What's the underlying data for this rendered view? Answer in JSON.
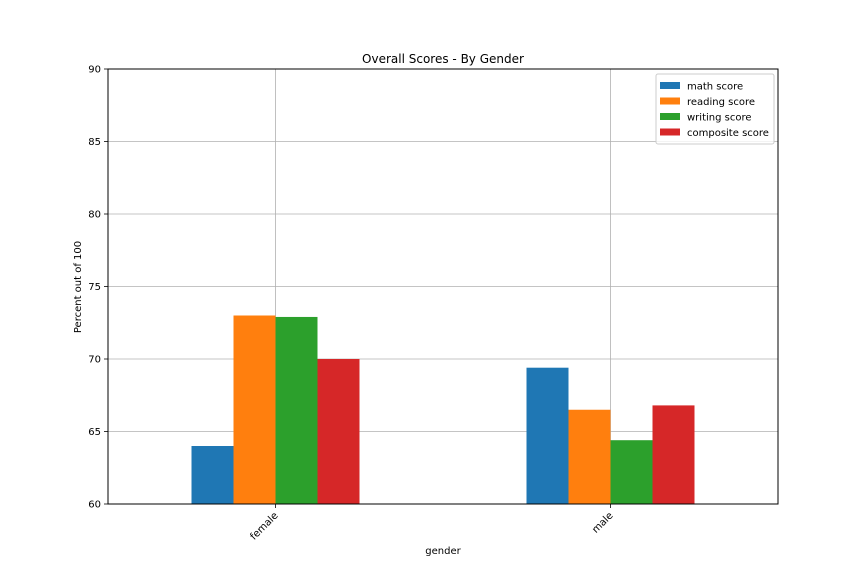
{
  "chart_data": {
    "type": "bar",
    "title": "Overall Scores - By Gender",
    "xlabel": "gender",
    "ylabel": "Percent out of 100",
    "categories": [
      "female",
      "male"
    ],
    "ylim": [
      60,
      90
    ],
    "yticks": [
      60,
      65,
      70,
      75,
      80,
      85,
      90
    ],
    "grid": true,
    "legend_position": "top-right",
    "series": [
      {
        "name": "math score",
        "color": "#1f77b4",
        "values": [
          64.0,
          69.4
        ]
      },
      {
        "name": "reading score",
        "color": "#ff7f0e",
        "values": [
          73.0,
          66.5
        ]
      },
      {
        "name": "writing score",
        "color": "#2ca02c",
        "values": [
          72.9,
          64.4
        ]
      },
      {
        "name": "composite score",
        "color": "#d62728",
        "values": [
          70.0,
          66.8
        ]
      }
    ]
  }
}
